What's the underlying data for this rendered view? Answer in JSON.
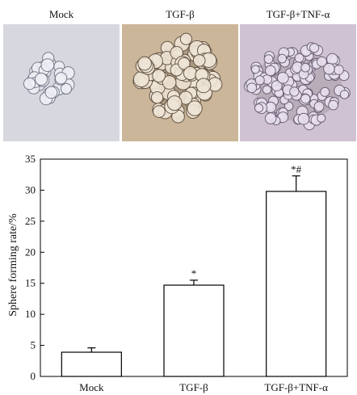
{
  "panels": [
    {
      "label": "Mock",
      "bg": "#d7d8df",
      "cell": "#eef0f6",
      "edge": "#6f7380"
    },
    {
      "label": "TGF-β",
      "bg": "#cbb69a",
      "cell": "#efe5d6",
      "edge": "#5b4b3c"
    },
    {
      "label": "TGF-β+TNF-α",
      "bg": "#cfc3d3",
      "cell": "#e8e0ee",
      "edge": "#655a70"
    }
  ],
  "chart_data": {
    "type": "bar",
    "categories": [
      "Mock",
      "TGF-β",
      "TGF-β+TNF-α"
    ],
    "values": [
      3.9,
      14.7,
      29.8
    ],
    "errors": [
      0.7,
      0.8,
      2.5
    ],
    "annotations": [
      "",
      "*",
      "*#"
    ],
    "ylabel": "Sphere forming rate/%",
    "ylim": [
      0,
      35
    ],
    "yticks": [
      0,
      5,
      10,
      15,
      20,
      25,
      30,
      35
    ],
    "bar_fill": "#ffffff",
    "stroke": "#000000"
  }
}
